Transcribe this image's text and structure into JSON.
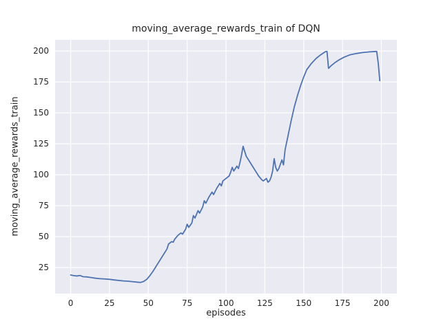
{
  "figure": {
    "title": "moving_average_rewards_train of DQN",
    "xlabel": "episodes",
    "ylabel": "moving_average_rewards_train"
  },
  "chart_data": {
    "type": "line",
    "title": "moving_average_rewards_train of DQN",
    "xlabel": "episodes",
    "ylabel": "moving_average_rewards_train",
    "legend": "none",
    "grid": true,
    "background_color": "#eaeaf2",
    "grid_color": "#ffffff",
    "line_color": "#4c72b0",
    "text_color": "#262626",
    "xticks": [
      0,
      25,
      50,
      75,
      100,
      125,
      150,
      175,
      200
    ],
    "yticks": [
      25,
      50,
      75,
      100,
      125,
      150,
      175,
      200
    ],
    "xlim": [
      -10,
      210
    ],
    "ylim": [
      4,
      209
    ],
    "series": [
      {
        "name": "moving_average_rewards_train",
        "points": [
          [
            0,
            19
          ],
          [
            2,
            18.5
          ],
          [
            4,
            18.2
          ],
          [
            6,
            18.6
          ],
          [
            8,
            17.6
          ],
          [
            10,
            17.5
          ],
          [
            13,
            17
          ],
          [
            16,
            16.4
          ],
          [
            19,
            16
          ],
          [
            22,
            15.8
          ],
          [
            25,
            15.5
          ],
          [
            28,
            15
          ],
          [
            31,
            14.6
          ],
          [
            34,
            14.2
          ],
          [
            37,
            14
          ],
          [
            40,
            13.6
          ],
          [
            43,
            13.2
          ],
          [
            45,
            13
          ],
          [
            47,
            13.8
          ],
          [
            49,
            15.5
          ],
          [
            51,
            18.5
          ],
          [
            53,
            22
          ],
          [
            55,
            26
          ],
          [
            57,
            30
          ],
          [
            59,
            34
          ],
          [
            61,
            38
          ],
          [
            62,
            40
          ],
          [
            63,
            44
          ],
          [
            65,
            46
          ],
          [
            66,
            45.5
          ],
          [
            67,
            48
          ],
          [
            69,
            51
          ],
          [
            71,
            53
          ],
          [
            72,
            52
          ],
          [
            74,
            56
          ],
          [
            75,
            60
          ],
          [
            76,
            57.5
          ],
          [
            78,
            61
          ],
          [
            79,
            67
          ],
          [
            80,
            65
          ],
          [
            82,
            71
          ],
          [
            83,
            69
          ],
          [
            85,
            74
          ],
          [
            86,
            79
          ],
          [
            87,
            77
          ],
          [
            89,
            82
          ],
          [
            91,
            86
          ],
          [
            92,
            84
          ],
          [
            94,
            89
          ],
          [
            96,
            93
          ],
          [
            97,
            91
          ],
          [
            98,
            95
          ],
          [
            100,
            97
          ],
          [
            102,
            99
          ],
          [
            103,
            102
          ],
          [
            104,
            106
          ],
          [
            105,
            103
          ],
          [
            107,
            107
          ],
          [
            108,
            105
          ],
          [
            109,
            110
          ],
          [
            110,
            116
          ],
          [
            111,
            123
          ],
          [
            112,
            119
          ],
          [
            113,
            115
          ],
          [
            115,
            111
          ],
          [
            117,
            107
          ],
          [
            119,
            103
          ],
          [
            121,
            99
          ],
          [
            123,
            96
          ],
          [
            124,
            95
          ],
          [
            126,
            97
          ],
          [
            127,
            94
          ],
          [
            128,
            95
          ],
          [
            129,
            98
          ],
          [
            130,
            103
          ],
          [
            131,
            113
          ],
          [
            132,
            106
          ],
          [
            133,
            103
          ],
          [
            134,
            105
          ],
          [
            136,
            112
          ],
          [
            137,
            108
          ],
          [
            138,
            120
          ],
          [
            140,
            132
          ],
          [
            142,
            144
          ],
          [
            144,
            155
          ],
          [
            146,
            164
          ],
          [
            148,
            172
          ],
          [
            150,
            179
          ],
          [
            152,
            185
          ],
          [
            155,
            190
          ],
          [
            158,
            194
          ],
          [
            161,
            197
          ],
          [
            164,
            199.5
          ],
          [
            165,
            199.7
          ],
          [
            166,
            186
          ],
          [
            168,
            188.5
          ],
          [
            170,
            190.5
          ],
          [
            173,
            193
          ],
          [
            176,
            195
          ],
          [
            180,
            197
          ],
          [
            184,
            198
          ],
          [
            188,
            198.8
          ],
          [
            192,
            199.3
          ],
          [
            196,
            199.6
          ],
          [
            197,
            199.7
          ],
          [
            198,
            190
          ],
          [
            199,
            176
          ]
        ]
      }
    ]
  }
}
